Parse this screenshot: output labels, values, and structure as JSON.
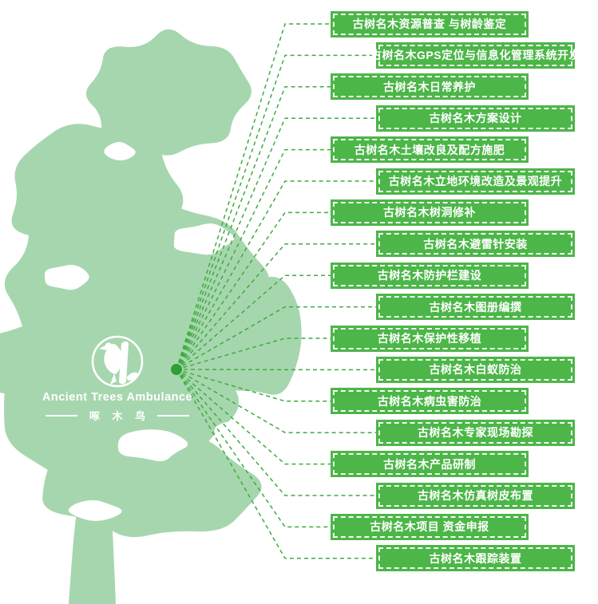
{
  "logo": {
    "name_en": "Ancient Trees Ambulance",
    "name_zh": "啄 木 鸟"
  },
  "colors": {
    "banner_green": "#4CB648",
    "connector_green": "#3FAC3F",
    "tree_green": "#A6D6AE",
    "hub_green": "#2E9E38",
    "text_white": "#FFFFFF"
  },
  "diagram": {
    "type": "radial-service-map",
    "hub": "tree-trunk-point",
    "services": [
      {
        "label": "古树名木资源普查 与树龄鉴定"
      },
      {
        "label": "古树名木GPS定位与信息化管理系统开发"
      },
      {
        "label": "古树名木日常养护"
      },
      {
        "label": "古树名木方案设计"
      },
      {
        "label": "古树名木土壤改良及配方施肥"
      },
      {
        "label": "古树名木立地环境改造及景观提升"
      },
      {
        "label": "古树名木树洞修补"
      },
      {
        "label": "古树名木避雷针安装"
      },
      {
        "label": "古树名木防护栏建设"
      },
      {
        "label": "古树名木图册编撰"
      },
      {
        "label": "古树名木保护性移植"
      },
      {
        "label": "古树名木白蚁防治"
      },
      {
        "label": "古树名木病虫害防治"
      },
      {
        "label": "古树名木专家现场勘探"
      },
      {
        "label": "古树名木产品研制"
      },
      {
        "label": "古树名木仿真树皮布置"
      },
      {
        "label": "古树名木项目 资金申报"
      },
      {
        "label": "古树名木跟踪装置"
      }
    ]
  }
}
